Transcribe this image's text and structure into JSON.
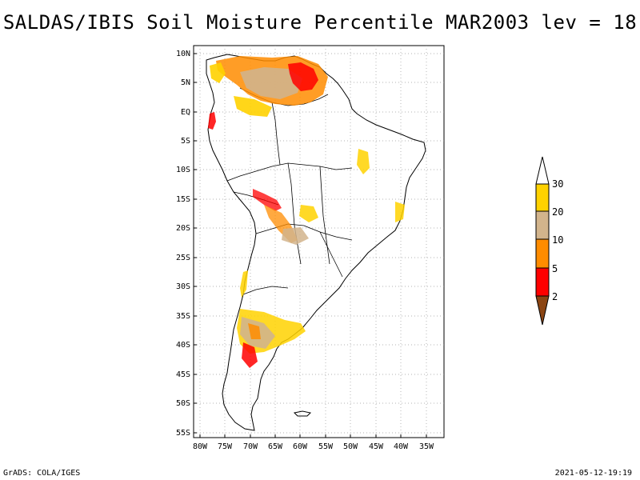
{
  "title": "SALDAS/IBIS Soil Moisture Percentile MAR2003 lev = 18",
  "lat_labels": [
    "10N",
    "5N",
    "EQ",
    "5S",
    "10S",
    "15S",
    "20S",
    "25S",
    "30S",
    "35S",
    "40S",
    "45S",
    "50S",
    "55S"
  ],
  "lon_labels": [
    "80W",
    "75W",
    "70W",
    "65W",
    "60W",
    "55W",
    "50W",
    "45W",
    "40W",
    "35W"
  ],
  "legend": {
    "labels": [
      "30",
      "20",
      "10",
      "5",
      "2"
    ],
    "colors": {
      "above30": "#ffffff",
      "c20_30": "#ffd200",
      "c10_20": "#d2b48c",
      "c5_10": "#ff8c00",
      "c2_5": "#ff0000",
      "below2": "#8b4513"
    }
  },
  "footer": {
    "left": "GrADS: COLA/IGES",
    "right": "2021-05-12-19:19"
  }
}
